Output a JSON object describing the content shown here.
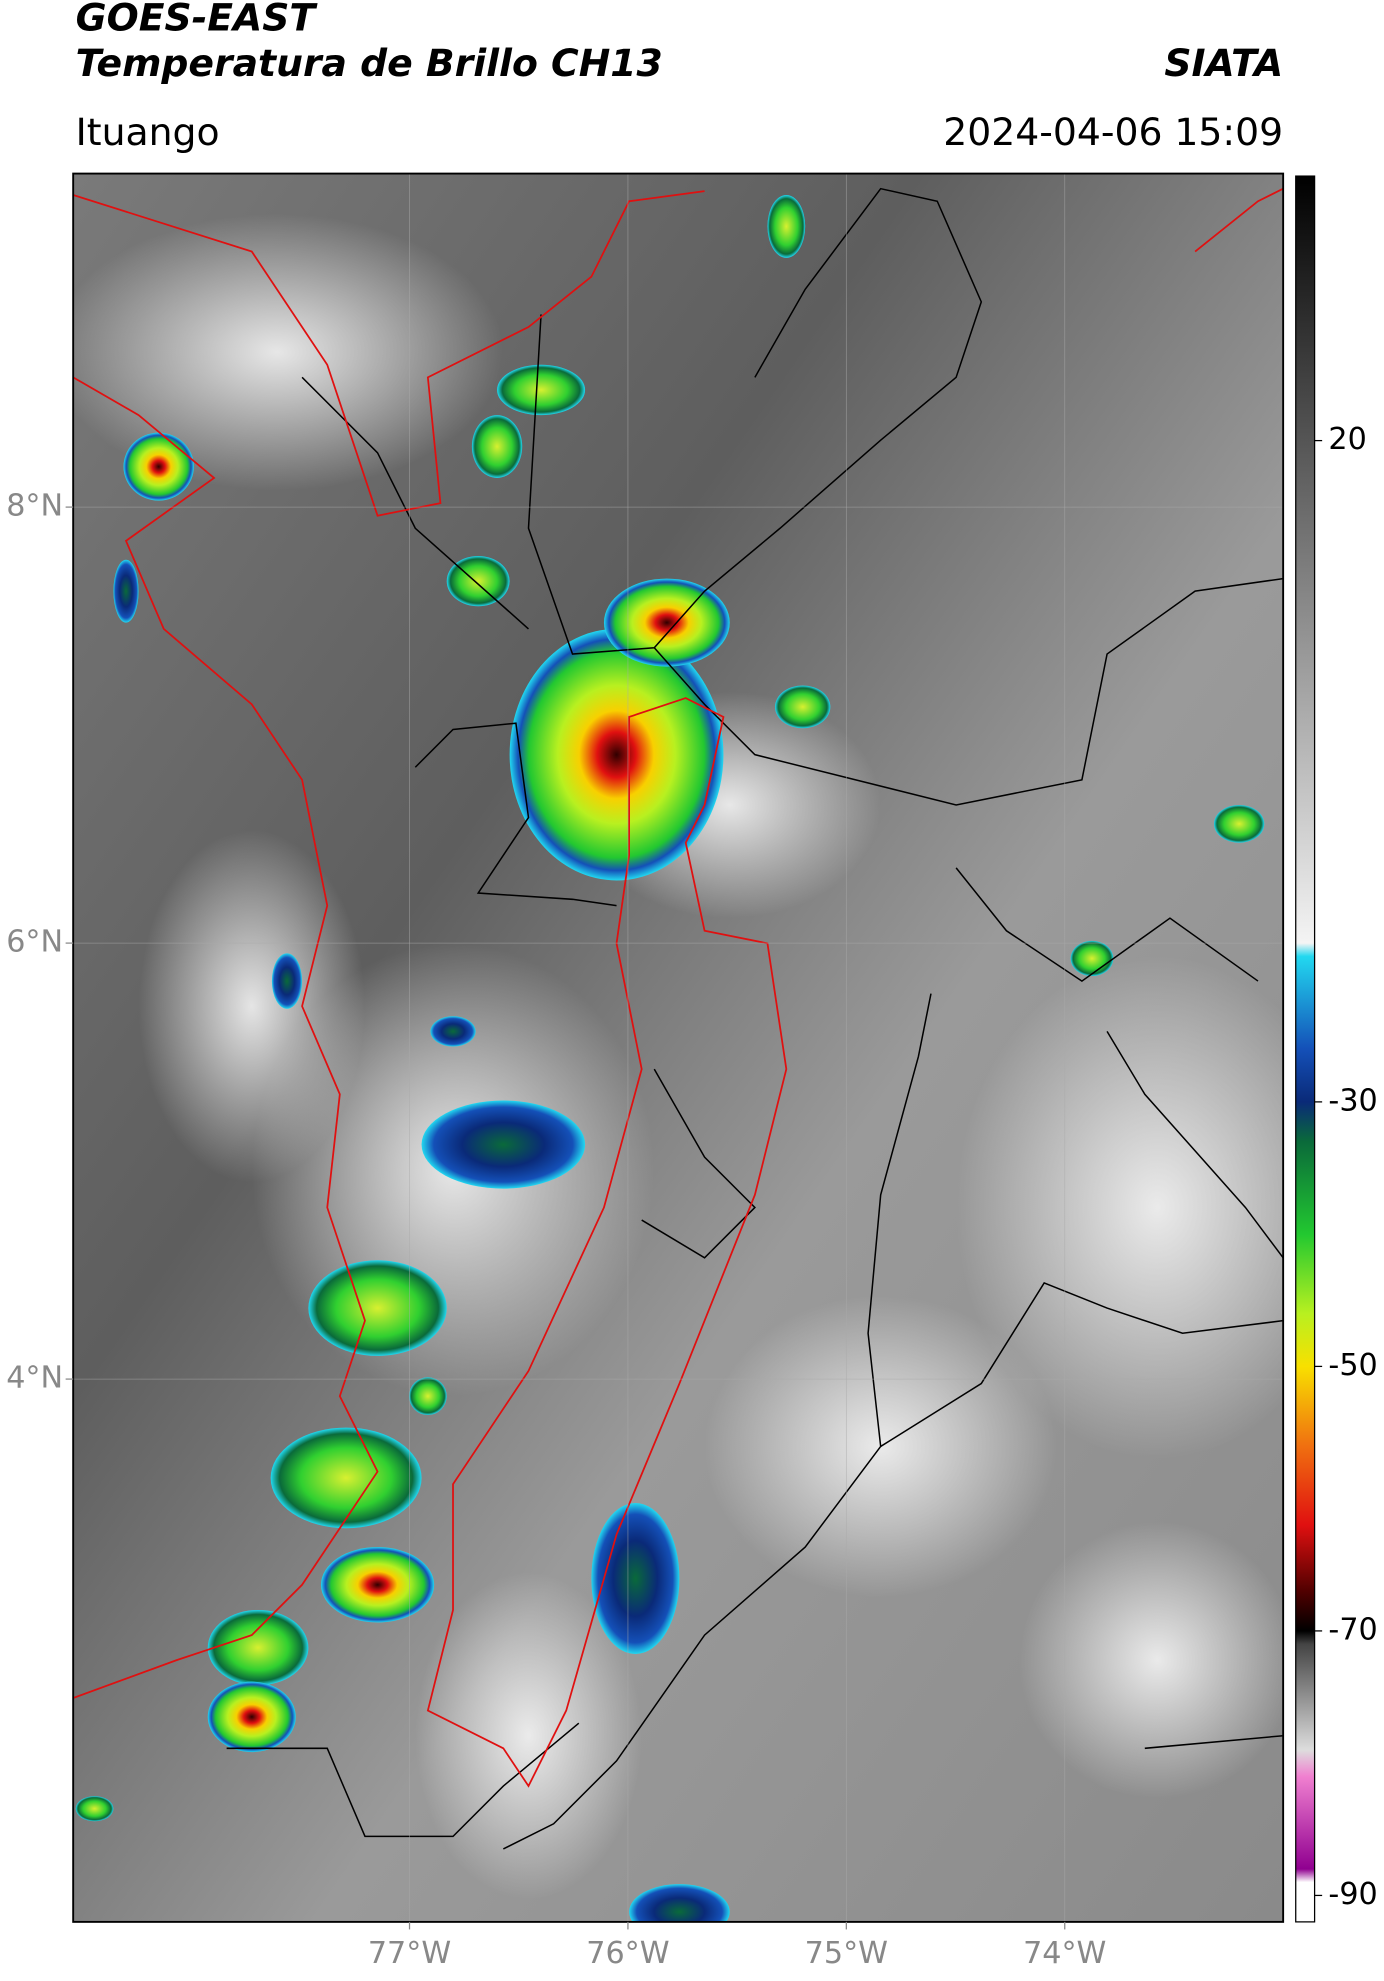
{
  "header": {
    "satellite": "GOES-EAST",
    "product": "Temperatura de Brillo CH13",
    "organization": "SIATA",
    "location": "Ituango",
    "datetime": "2024-04-06 15:09"
  },
  "map": {
    "lonlim": [
      -78.54,
      -73.0
    ],
    "latlim": [
      1.51,
      9.53
    ],
    "lon_ticks": [
      {
        "value": -77,
        "label": "77°W"
      },
      {
        "value": -76,
        "label": "76°W"
      },
      {
        "value": -75,
        "label": "75°W"
      },
      {
        "value": -74,
        "label": "74°W"
      }
    ],
    "lat_ticks": [
      {
        "value": 8,
        "label": "8°N"
      },
      {
        "value": 6,
        "label": "6°N"
      },
      {
        "value": 4,
        "label": "4°N"
      }
    ],
    "grid": true
  },
  "colorbar": {
    "lim": [
      -92,
      40
    ],
    "ticks": [
      20,
      -30,
      -50,
      -70,
      -90
    ],
    "colormap": [
      {
        "value": 40,
        "color": "#000000"
      },
      {
        "value": 20,
        "color": "#555555"
      },
      {
        "value": -18,
        "color": "#f4f4f4"
      },
      {
        "value": -19,
        "color": "#22d8f0"
      },
      {
        "value": -26,
        "color": "#1450b8"
      },
      {
        "value": -30,
        "color": "#0a2a78"
      },
      {
        "value": -33,
        "color": "#0a6a3a"
      },
      {
        "value": -40,
        "color": "#22c830"
      },
      {
        "value": -46,
        "color": "#b8f020"
      },
      {
        "value": -50,
        "color": "#f8e000"
      },
      {
        "value": -56,
        "color": "#f07010"
      },
      {
        "value": -62,
        "color": "#e01010"
      },
      {
        "value": -67,
        "color": "#500000"
      },
      {
        "value": -70,
        "color": "#000000"
      },
      {
        "value": -71,
        "color": "#444444"
      },
      {
        "value": -79,
        "color": "#dddddd"
      },
      {
        "value": -81,
        "color": "#f080d0"
      },
      {
        "value": -88,
        "color": "#900090"
      },
      {
        "value": -89,
        "color": "#ffffff"
      }
    ]
  }
}
